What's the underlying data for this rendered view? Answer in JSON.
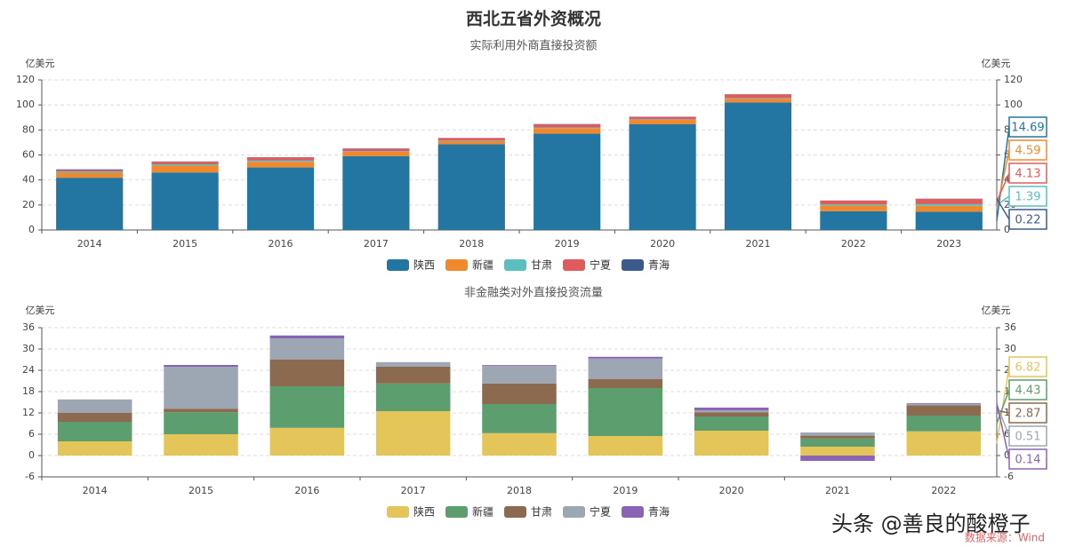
{
  "chart_data": [
    {
      "type": "stacked_bar",
      "title": "西北五省外资概况",
      "subtitle": "实际利用外商直接投资额",
      "y_label": "亿美元",
      "y2_label": "亿美元",
      "categories": [
        "2014",
        "2015",
        "2016",
        "2017",
        "2018",
        "2019",
        "2020",
        "2021",
        "2022",
        "2023"
      ],
      "series": [
        {
          "name": "陕西",
          "color": "#2476a2",
          "values": [
            41.8,
            46,
            50,
            59,
            68.5,
            77,
            84.5,
            102,
            15,
            14.69
          ]
        },
        {
          "name": "新疆",
          "color": "#f0882d",
          "values": [
            4,
            5.5,
            4.5,
            3.5,
            2.5,
            4.5,
            3.5,
            3,
            4.5,
            4.59
          ]
        },
        {
          "name": "甘肃",
          "color": "#5bbfc0",
          "values": [
            1,
            1,
            1,
            0.5,
            0.5,
            0.5,
            0.5,
            0.5,
            1,
            1.39
          ]
        },
        {
          "name": "宁夏",
          "color": "#e05c5c",
          "values": [
            1.2,
            2,
            2.5,
            2,
            2,
            2.5,
            2,
            3,
            3,
            4.13
          ]
        },
        {
          "name": "青海",
          "color": "#3d5a8c",
          "values": [
            0.5,
            0.3,
            0.2,
            0.2,
            0.1,
            0.2,
            0.1,
            0.1,
            0.1,
            0.22
          ]
        }
      ],
      "ylim": [
        0,
        120
      ],
      "yticks": [
        0,
        20,
        40,
        60,
        80,
        100,
        120
      ],
      "y2lim": [
        0,
        120
      ],
      "y2ticks": [
        0,
        20,
        40,
        60,
        80,
        100,
        120
      ],
      "grid": true
    },
    {
      "type": "stacked_bar",
      "subtitle": "非金融类对外直接投资流量",
      "y_label": "亿美元",
      "y2_label": "亿美元",
      "categories": [
        "2014",
        "2015",
        "2016",
        "2017",
        "2018",
        "2019",
        "2020",
        "2021",
        "2022"
      ],
      "series": [
        {
          "name": "陕西",
          "color": "#e4c55a",
          "values": [
            4,
            6,
            7.8,
            12.5,
            6.3,
            5.5,
            7,
            2.5,
            6.82
          ]
        },
        {
          "name": "新疆",
          "color": "#5c9e6e",
          "values": [
            5.5,
            6.2,
            11.7,
            7.8,
            8.2,
            13.5,
            4,
            2.3,
            4.43
          ]
        },
        {
          "name": "甘肃",
          "color": "#8b6a50",
          "values": [
            2.5,
            1,
            7.5,
            4.7,
            5.8,
            2.5,
            1.2,
            0.8,
            2.87
          ]
        },
        {
          "name": "宁夏",
          "color": "#9ca7b3",
          "values": [
            3.8,
            11.8,
            6,
            1.3,
            5,
            5.8,
            0.5,
            0.9,
            0.51
          ]
        },
        {
          "name": "青海",
          "color": "#8a63b5",
          "values": [
            0,
            0.5,
            0.8,
            0,
            0.2,
            0.5,
            0.8,
            -1.5,
            0.14
          ]
        }
      ],
      "ylim": [
        -6,
        36
      ],
      "yticks": [
        -6,
        0,
        6,
        12,
        18,
        24,
        30,
        36
      ],
      "y2lim": [
        -6,
        36
      ],
      "y2ticks": [
        -6,
        0,
        6,
        12,
        18,
        24,
        30,
        36
      ],
      "grid": true
    }
  ],
  "watermark": "头条 @善良的酸橙子",
  "source": "数据来源：Wind"
}
